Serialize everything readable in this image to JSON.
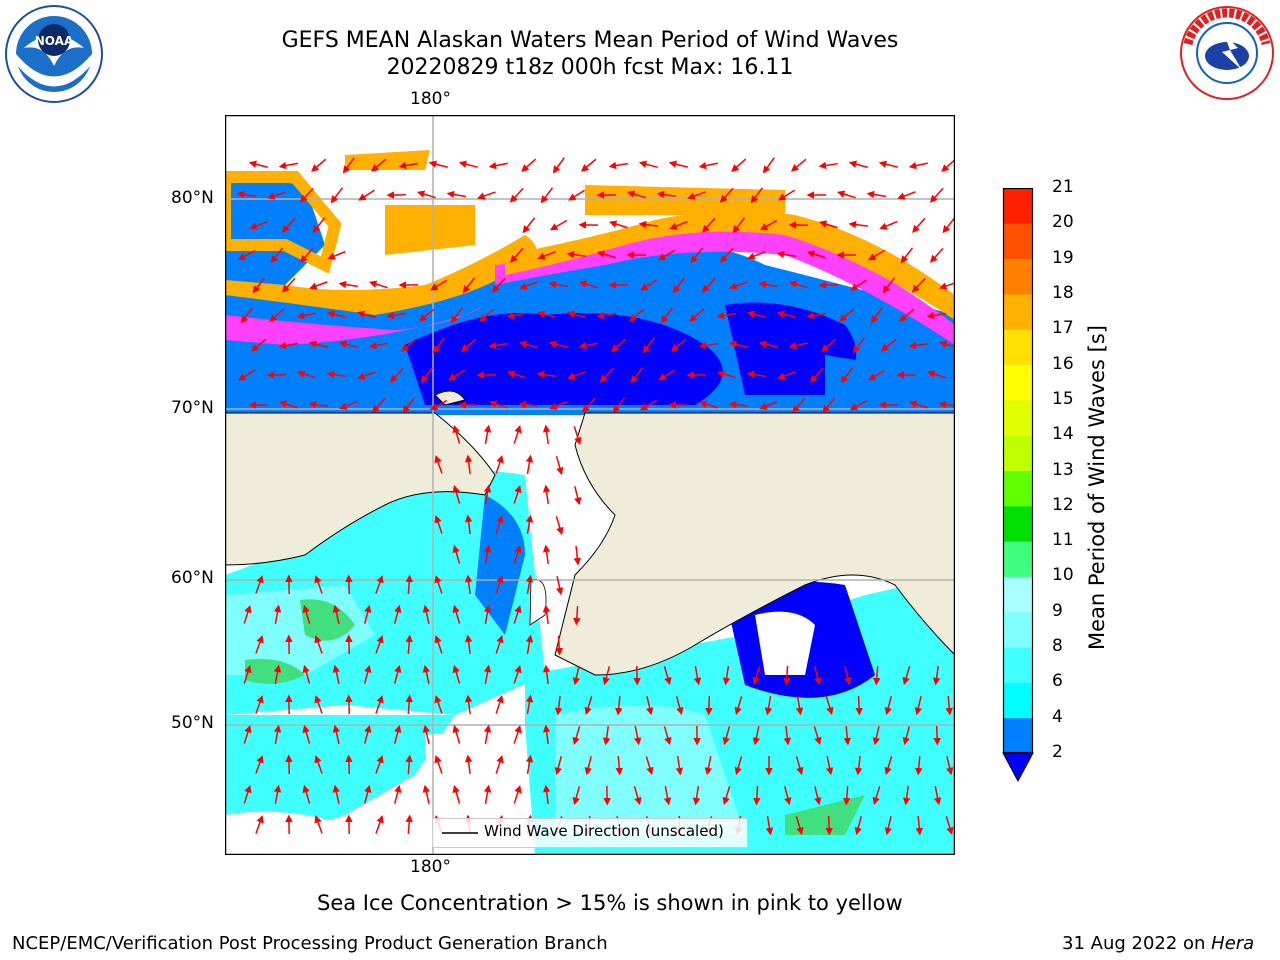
{
  "title": {
    "line1": "GEFS MEAN Alaskan Waters Mean Period of Wind Waves",
    "line2": "20220829 t18z 000h fcst   Max: 16.11"
  },
  "map": {
    "lon_label_top": "180°",
    "lon_label_bottom": "180°",
    "lat_labels": [
      "80°N",
      "70°N",
      "60°N",
      "50°N"
    ],
    "colors": {
      "ocean_low": "#0000ff",
      "ocean_mid": "#0080ff",
      "ocean_cyan": "#00ffff",
      "ocean_lightcyan": "#80ffff",
      "land": "#efedda",
      "grid": "#b0b0b0",
      "arrow": "#ff0000",
      "ice_pink": "#ff40ff",
      "ice_orange": "#ffb000",
      "ice_yellow": "#ffff40"
    },
    "legend_label": "Wind Wave Direction (unscaled)"
  },
  "colorbar": {
    "label": "Mean Period of Wind Waves [s]",
    "ticks": [
      "2",
      "4",
      "6",
      "8",
      "9",
      "10",
      "11",
      "12",
      "13",
      "14",
      "15",
      "16",
      "17",
      "18",
      "19",
      "20",
      "21"
    ],
    "colors": [
      "#0080ff",
      "#00ffff",
      "#40ffff",
      "#80ffff",
      "#a8ffff",
      "#40ff80",
      "#00e000",
      "#60ff00",
      "#c0ff00",
      "#e0ff00",
      "#ffff00",
      "#ffe000",
      "#ffb000",
      "#ff8000",
      "#ff5000",
      "#ff2000"
    ],
    "extend_color": "#0000ff"
  },
  "caption": "Sea Ice Concentration > 15% is shown in pink to yellow",
  "footer": {
    "left": "NCEP/EMC/Verification Post Processing Product Generation Branch",
    "right_date": "31 Aug 2022 on ",
    "right_host": "Hera"
  },
  "logos": {
    "noaa": "NOAA",
    "nws": "NATIONAL WEATHER SERVICE"
  }
}
